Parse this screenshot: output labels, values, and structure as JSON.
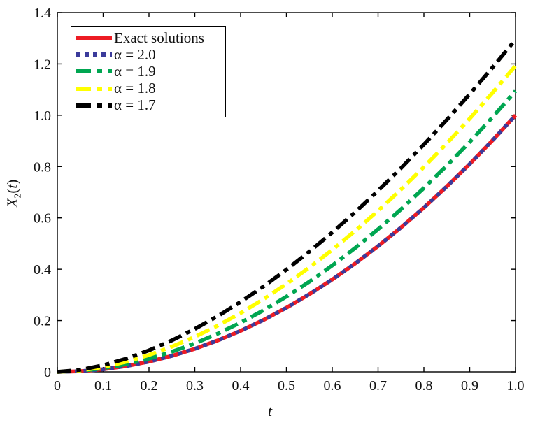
{
  "chart_data": {
    "type": "line",
    "title": "",
    "xlabel": "t",
    "ylabel": "X_2(t)",
    "ylabel_parts": {
      "base": "X",
      "sub": "2",
      "open": "(",
      "var": "t",
      "close": ")"
    },
    "xlim": [
      0,
      1.0
    ],
    "ylim": [
      0,
      1.4
    ],
    "grid": false,
    "legend_position": "top-left",
    "x_ticks": [
      "0",
      "0.1",
      "0.2",
      "0.3",
      "0.4",
      "0.5",
      "0.6",
      "0.7",
      "0.8",
      "0.9",
      "1.0"
    ],
    "x_tick_values": [
      0,
      0.1,
      0.2,
      0.3,
      0.4,
      0.5,
      0.6,
      0.7,
      0.8,
      0.9,
      1.0
    ],
    "y_ticks": [
      "0",
      "0.2",
      "0.4",
      "0.6",
      "0.8",
      "1.0",
      "1.2",
      "1.4"
    ],
    "y_tick_values": [
      0,
      0.2,
      0.4,
      0.6,
      0.8,
      1.0,
      1.2,
      1.4
    ],
    "x": [
      0,
      0.05,
      0.1,
      0.15,
      0.2,
      0.25,
      0.3,
      0.35,
      0.4,
      0.45,
      0.5,
      0.55,
      0.6,
      0.65,
      0.7,
      0.75,
      0.8,
      0.85,
      0.9,
      0.95,
      1.0
    ],
    "series": [
      {
        "name": "Exact solutions",
        "color": "#ed1c24",
        "style": "solid",
        "width": 5.5,
        "values": [
          0,
          0.0025,
          0.01,
          0.0225,
          0.04,
          0.0625,
          0.09,
          0.1225,
          0.16,
          0.2025,
          0.25,
          0.3025,
          0.36,
          0.4225,
          0.49,
          0.5625,
          0.64,
          0.7225,
          0.81,
          0.9025,
          1.0
        ]
      },
      {
        "name": "α = 2.0",
        "color": "#3b3b9b",
        "style": "dotted",
        "width": 5.5,
        "values": [
          0,
          0.0025,
          0.01,
          0.0225,
          0.04,
          0.0625,
          0.09,
          0.1225,
          0.16,
          0.2025,
          0.25,
          0.3025,
          0.36,
          0.4225,
          0.49,
          0.5625,
          0.64,
          0.7225,
          0.81,
          0.9025,
          1.0
        ]
      },
      {
        "name": "α = 1.9",
        "color": "#00a651",
        "style": "dashdot",
        "width": 5.5,
        "values": [
          0,
          0.0037,
          0.0138,
          0.0298,
          0.0514,
          0.0786,
          0.1111,
          0.1489,
          0.192,
          0.24,
          0.2933,
          0.3514,
          0.4147,
          0.4828,
          0.5558,
          0.6336,
          0.7165,
          0.8037,
          0.8959,
          0.9928,
          1.0945
        ]
      },
      {
        "name": "α = 1.8",
        "color": "#ffff00",
        "style": "dashdot",
        "width": 5.5,
        "values": [
          0,
          0.0054,
          0.0189,
          0.0392,
          0.0658,
          0.0984,
          0.1366,
          0.1803,
          0.2293,
          0.2834,
          0.3426,
          0.4067,
          0.4756,
          0.5494,
          0.6278,
          0.7108,
          0.7983,
          0.8904,
          0.9869,
          1.0878,
          1.193
        ]
      },
      {
        "name": "α = 1.7",
        "color": "#000000",
        "style": "dashdot",
        "width": 5.5,
        "values": [
          0,
          0.0079,
          0.0258,
          0.0515,
          0.0839,
          0.1227,
          0.1673,
          0.2173,
          0.2727,
          0.3331,
          0.3985,
          0.4686,
          0.5433,
          0.6225,
          0.7061,
          0.7939,
          0.886,
          0.9822,
          1.0824,
          1.1866,
          1.2948
        ]
      }
    ],
    "axis_color": "#000000",
    "background": "#ffffff"
  }
}
